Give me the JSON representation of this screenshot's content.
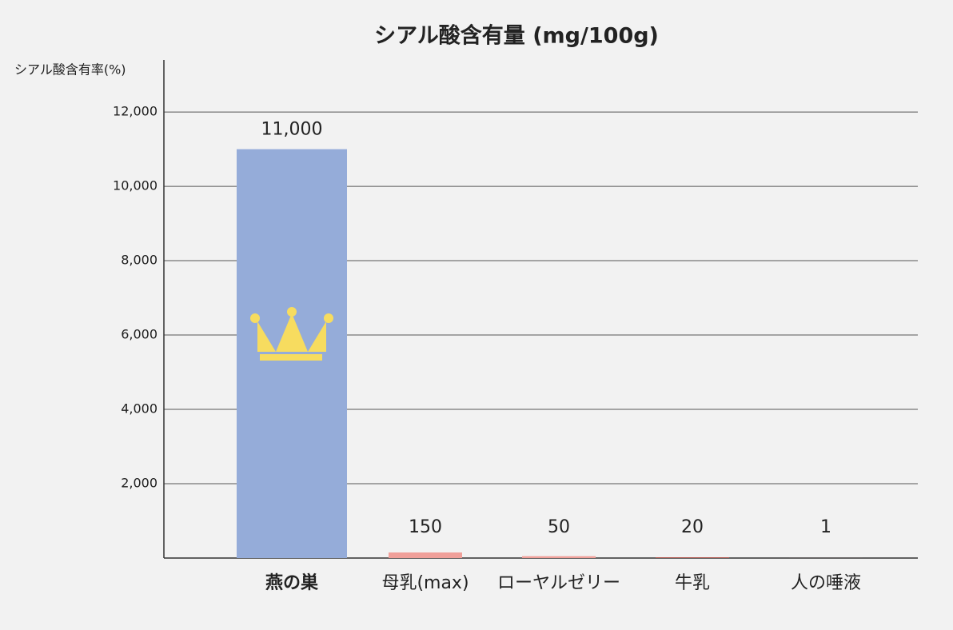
{
  "chart_data": {
    "type": "bar",
    "title": "シアル酸含有量 (mg/100g)",
    "y_label": "シアル酸含有率(%)",
    "categories": [
      "燕の巣",
      "母乳(max)",
      "ローヤルゼリー",
      "牛乳",
      "人の唾液"
    ],
    "values": [
      11000,
      150,
      50,
      20,
      1
    ],
    "value_labels": [
      "11,000",
      "150",
      "50",
      "20",
      "1"
    ],
    "colors": [
      "#95acd9",
      "#f0a09a",
      "#f0a09a",
      "#b5554d",
      "#b5554d"
    ],
    "highlight_index": 0,
    "ylim": [
      0,
      13400
    ],
    "yticks": [
      {
        "value": 2000,
        "label": "2,000"
      },
      {
        "value": 4000,
        "label": "4,000"
      },
      {
        "value": 6000,
        "label": "6,000"
      },
      {
        "value": 8000,
        "label": "8,000"
      },
      {
        "value": 10000,
        "label": "10,000"
      },
      {
        "value": 12000,
        "label": "12,000"
      }
    ],
    "grid": true
  }
}
